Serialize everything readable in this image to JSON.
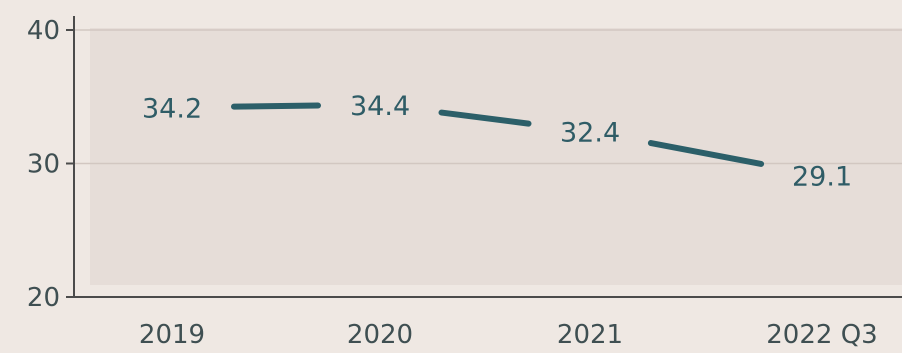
{
  "chart_data": {
    "type": "line",
    "categories": [
      "2019",
      "2020",
      "2021",
      "2022 Q3"
    ],
    "series": [
      {
        "values": [
          34.2,
          34.4,
          32.4,
          29.1
        ],
        "labels": [
          "34.2",
          "34.4",
          "32.4",
          "29.1"
        ]
      }
    ],
    "yticks": [
      "20",
      "30",
      "40"
    ],
    "ylim": [
      20,
      40
    ],
    "grid": true,
    "colors": {
      "line": "#2c5f69",
      "plot_background": "#e6ddd8",
      "page_background": "#efe8e3",
      "grid": "#d2c7c1",
      "axis": "#4b4b4b"
    }
  }
}
